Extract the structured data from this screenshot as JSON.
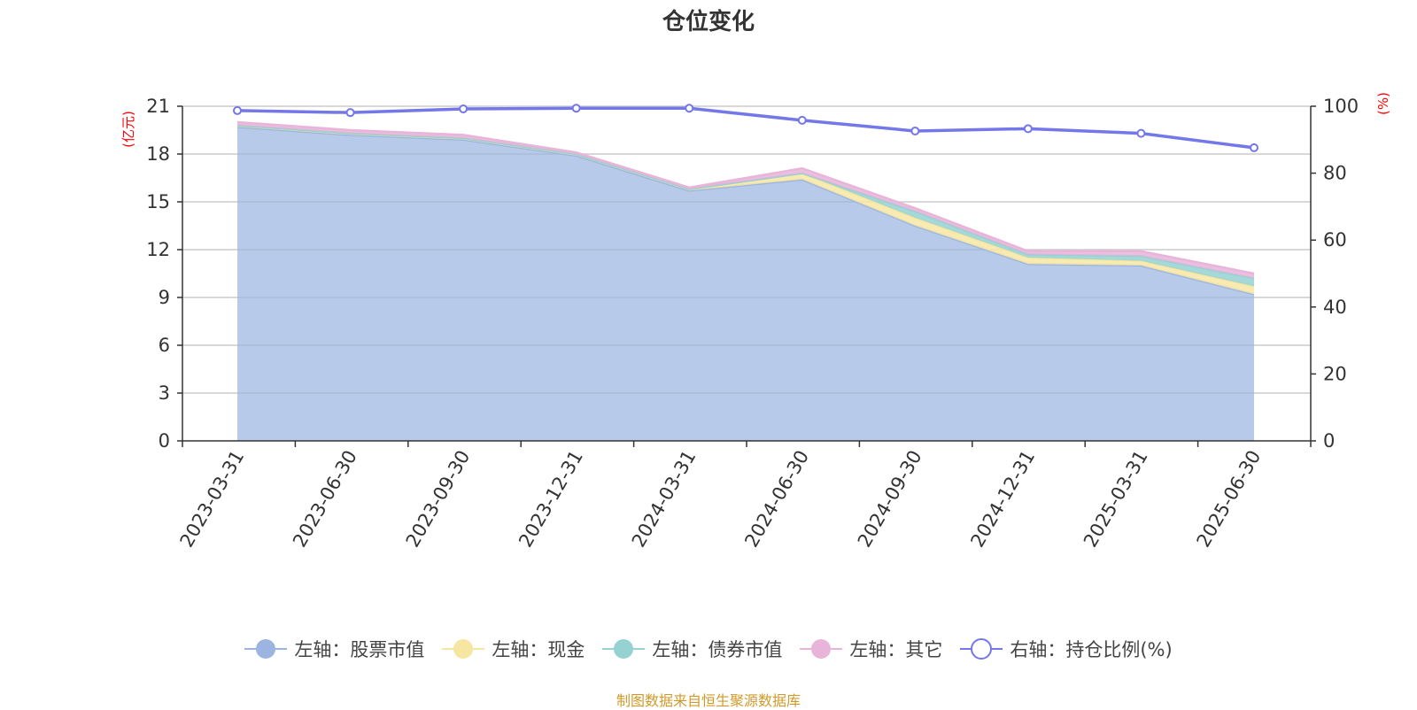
{
  "chart_data": {
    "type": "area",
    "title": "仓位变化",
    "x": [
      "2023-03-31",
      "2023-06-30",
      "2023-09-30",
      "2023-12-31",
      "2024-03-31",
      "2024-06-30",
      "2024-09-30",
      "2024-12-31",
      "2025-03-31",
      "2025-06-30"
    ],
    "left_axis": {
      "label": "(亿元)",
      "ylim": [
        0,
        21
      ],
      "ticks": [
        0,
        3,
        6,
        9,
        12,
        15,
        18,
        21
      ]
    },
    "right_axis": {
      "label": "(%)",
      "ylim": [
        0,
        100
      ],
      "ticks": [
        0,
        20,
        40,
        60,
        80,
        100
      ]
    },
    "series": [
      {
        "name": "左轴：股票市值",
        "axis": "left",
        "stack": true,
        "color": "#9bb5e0",
        "values": [
          19.7,
          19.2,
          18.9,
          17.9,
          15.7,
          16.4,
          13.5,
          11.1,
          11.0,
          9.2
        ]
      },
      {
        "name": "左轴：现金",
        "axis": "left",
        "stack": true,
        "color": "#f7e6a2",
        "values": [
          0.1,
          0.1,
          0.1,
          0.1,
          0.1,
          0.4,
          0.5,
          0.4,
          0.3,
          0.5
        ]
      },
      {
        "name": "左轴：债券市值",
        "axis": "left",
        "stack": true,
        "color": "#95d2d2",
        "values": [
          0.0,
          0.0,
          0.0,
          0.0,
          0.0,
          0.0,
          0.4,
          0.2,
          0.3,
          0.5
        ]
      },
      {
        "name": "左轴：其它",
        "axis": "left",
        "stack": true,
        "color": "#e8b4d9",
        "values": [
          0.2,
          0.2,
          0.2,
          0.1,
          0.1,
          0.3,
          0.2,
          0.2,
          0.3,
          0.3
        ]
      },
      {
        "name": "右轴：持仓比例(%)",
        "axis": "right",
        "stack": false,
        "color": "#7477e8",
        "values": [
          98.7,
          98.1,
          99.2,
          99.4,
          99.4,
          95.8,
          92.6,
          93.3,
          91.9,
          87.6
        ]
      }
    ],
    "grid": true,
    "legend_position": "bottom"
  },
  "source_note": "制图数据来自恒生聚源数据库"
}
